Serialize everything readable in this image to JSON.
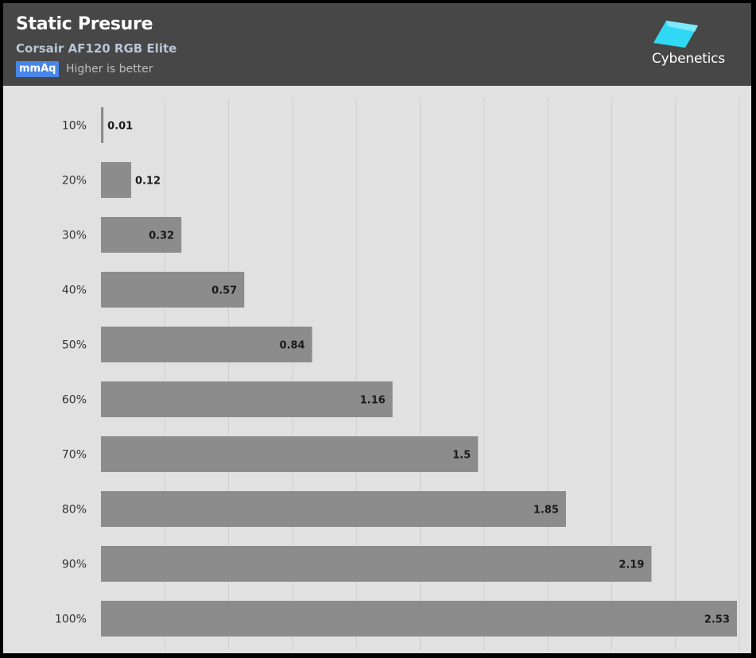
{
  "header": {
    "title": "Static Presure",
    "subtitle": "Corsair AF120 RGB Elite",
    "unit": "mmAq",
    "note": "Higher is better",
    "logo_text": "Cybenetics"
  },
  "colors": {
    "header_bg": "#474747",
    "plot_bg": "#e1e1e1",
    "bar": "#8c8c8c",
    "badge": "#4a86e8",
    "logo": "#31d8f3"
  },
  "chart_data": {
    "type": "bar",
    "orientation": "horizontal",
    "categories": [
      "10%",
      "20%",
      "30%",
      "40%",
      "50%",
      "60%",
      "70%",
      "80%",
      "90%",
      "100%"
    ],
    "values": [
      0.01,
      0.12,
      0.32,
      0.57,
      0.84,
      1.16,
      1.5,
      1.85,
      2.19,
      2.53
    ],
    "value_labels": [
      "0.01",
      "0.12",
      "0.32",
      "0.57",
      "0.84",
      "1.16",
      "1.5",
      "1.85",
      "2.19",
      "2.53"
    ],
    "title": "Static Presure",
    "subtitle": "Corsair AF120 RGB Elite",
    "xlabel": "mmAq",
    "ylabel": "",
    "xlim": [
      0,
      2.53
    ],
    "grid": true,
    "legend": "none"
  }
}
